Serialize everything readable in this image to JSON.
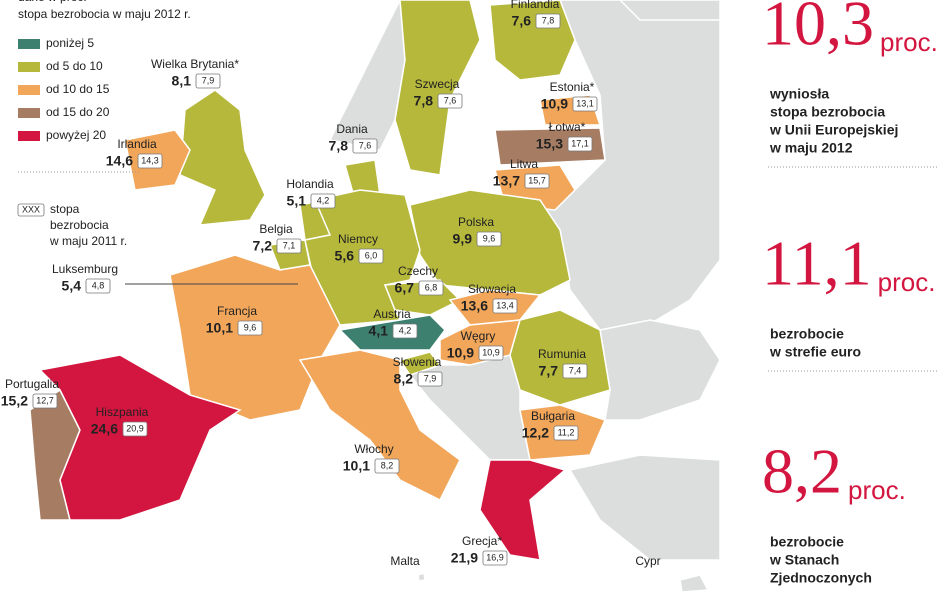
{
  "legend": {
    "title_lines": [
      "dane w proc.",
      "stopa bezrobocia w maju 2012 r."
    ],
    "items": [
      {
        "label": "poniżej 5",
        "color": "#3d8070"
      },
      {
        "label": "od 5 do 10",
        "color": "#b6b83c"
      },
      {
        "label": "od 10 do 15",
        "color": "#f2a65a"
      },
      {
        "label": "od 15 do 20",
        "color": "#a67d63"
      },
      {
        "label": "powyżej 20",
        "color": "#d3163f"
      }
    ],
    "note_box": "XXX",
    "note_lines": [
      "stopa",
      "bezrobocia",
      "w maju 2011 r."
    ]
  },
  "countries": [
    {
      "name": "Finlandia",
      "value_2012": "7,6",
      "value_2011": "7,8",
      "color": "#b6b83c"
    },
    {
      "name": "Wielka Brytania*",
      "value_2012": "8,1",
      "value_2011": "7,9",
      "color": "#b6b83c"
    },
    {
      "name": "Szwecja",
      "value_2012": "7,8",
      "value_2011": "7,6",
      "color": "#b6b83c"
    },
    {
      "name": "Estonia*",
      "value_2012": "10,9",
      "value_2011": "13,1",
      "color": "#f2a65a"
    },
    {
      "name": "Irlandia",
      "value_2012": "14,6",
      "value_2011": "14,3",
      "color": "#f2a65a"
    },
    {
      "name": "Dania",
      "value_2012": "7,8",
      "value_2011": "7,6",
      "color": "#b6b83c"
    },
    {
      "name": "Łotwa*",
      "value_2012": "15,3",
      "value_2011": "17,1",
      "color": "#a67d63"
    },
    {
      "name": "Litwa",
      "value_2012": "13,7",
      "value_2011": "15,7",
      "color": "#f2a65a"
    },
    {
      "name": "Holandia",
      "value_2012": "5,1",
      "value_2011": "4,2",
      "color": "#b6b83c"
    },
    {
      "name": "Polska",
      "value_2012": "9,9",
      "value_2011": "9,6",
      "color": "#b6b83c"
    },
    {
      "name": "Belgia",
      "value_2012": "7,2",
      "value_2011": "7,1",
      "color": "#b6b83c"
    },
    {
      "name": "Niemcy",
      "value_2012": "5,6",
      "value_2011": "6,0",
      "color": "#b6b83c"
    },
    {
      "name": "Luksemburg",
      "value_2012": "5,4",
      "value_2011": "4,8",
      "color": "#b6b83c"
    },
    {
      "name": "Czechy",
      "value_2012": "6,7",
      "value_2011": "6,8",
      "color": "#b6b83c"
    },
    {
      "name": "Słowacja",
      "value_2012": "13,6",
      "value_2011": "13,4",
      "color": "#f2a65a"
    },
    {
      "name": "Francja",
      "value_2012": "10,1",
      "value_2011": "9,6",
      "color": "#f2a65a"
    },
    {
      "name": "Austria",
      "value_2012": "4,1",
      "value_2011": "4,2",
      "color": "#3d8070"
    },
    {
      "name": "Węgry",
      "value_2012": "10,9",
      "value_2011": "10,9",
      "color": "#f2a65a"
    },
    {
      "name": "Rumunia",
      "value_2012": "7,7",
      "value_2011": "7,4",
      "color": "#b6b83c"
    },
    {
      "name": "Słowenia",
      "value_2012": "8,2",
      "value_2011": "7,9",
      "color": "#b6b83c"
    },
    {
      "name": "Portugalia",
      "value_2012": "15,2",
      "value_2011": "12,7",
      "color": "#a67d63"
    },
    {
      "name": "Hiszpania",
      "value_2012": "24,6",
      "value_2011": "20,9",
      "color": "#d3163f"
    },
    {
      "name": "Bułgaria",
      "value_2012": "12,2",
      "value_2011": "11,2",
      "color": "#f2a65a"
    },
    {
      "name": "Włochy",
      "value_2012": "10,1",
      "value_2011": "8,2",
      "color": "#f2a65a"
    },
    {
      "name": "Grecja*",
      "value_2012": "21,9",
      "value_2011": "16,9",
      "color": "#d3163f"
    },
    {
      "name": "Malta"
    },
    {
      "name": "Cypr"
    }
  ],
  "panels": [
    {
      "value": "10,3",
      "unit": "proc.",
      "lines": [
        "wyniosła",
        "stopa bezrobocia",
        "w Unii Europejskiej",
        "w maju 2012"
      ]
    },
    {
      "value": "11,1",
      "unit": "proc.",
      "lines": [
        "bezrobocie",
        "w strefie euro"
      ]
    },
    {
      "value": "8,2",
      "unit": "proc.",
      "lines": [
        "bezrobocie",
        "w Stanach",
        "Zjednoczonych"
      ]
    }
  ]
}
